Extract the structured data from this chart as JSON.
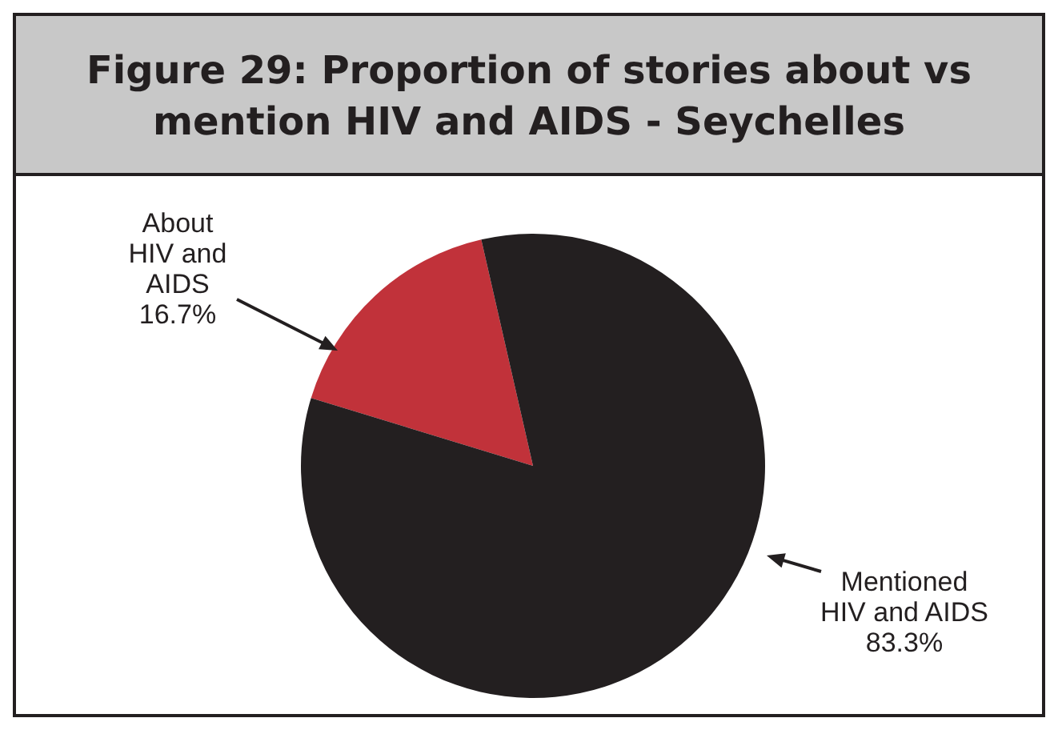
{
  "chart_data": {
    "type": "pie",
    "title": "Figure 29: Proportion of stories about vs mention HIV and AIDS - Seychelles",
    "categories": [
      "About HIV and AIDS",
      "Mentioned HIV and AIDS"
    ],
    "values": [
      16.7,
      83.3
    ],
    "colors": [
      "#c1323a",
      "#231f20"
    ],
    "value_labels": [
      "16.7%",
      "83.3%"
    ]
  }
}
